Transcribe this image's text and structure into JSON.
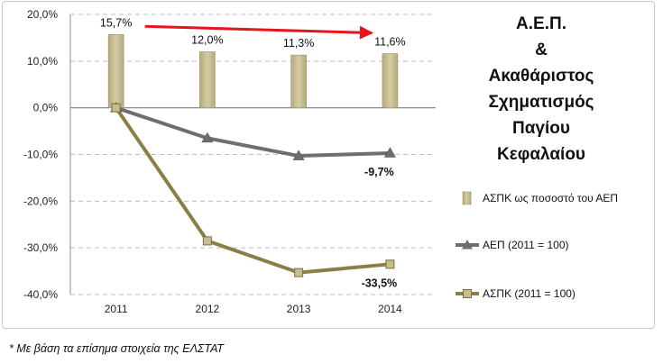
{
  "chart_data": {
    "type": "bar+line",
    "categories": [
      "2011",
      "2012",
      "2013",
      "2014"
    ],
    "ylim": [
      -40,
      20
    ],
    "yticks": [
      20,
      10,
      0,
      -10,
      -20,
      -30,
      -40
    ],
    "ytick_labels": [
      "20,0%",
      "10,0%",
      "0,0%",
      "-10,0%",
      "-20,0%",
      "-30,0%",
      "-40,0%"
    ],
    "grid": true,
    "legend_position": "right",
    "title_lines": [
      "Α.Ε.Π.",
      "&",
      "Ακαθάριστος",
      "Σχηματισμός",
      "Παγίου",
      "Κεφαλαίου"
    ],
    "series": [
      {
        "name": "ΑΣΠΚ ως ποσοστό του ΑΕΠ",
        "kind": "bar",
        "values": [
          15.7,
          12.0,
          11.3,
          11.6
        ],
        "labels": [
          "15,7%",
          "12,0%",
          "11,3%",
          "11,6%"
        ],
        "color": "#c6bd93"
      },
      {
        "name": "ΑΕΠ (2011 = 100)",
        "kind": "line",
        "values": [
          0.0,
          -6.5,
          -10.3,
          -9.7
        ],
        "end_label": "-9,7%",
        "color": "#6e6e6e"
      },
      {
        "name": "ΑΣΠΚ (2011 = 100)",
        "kind": "line",
        "values": [
          0.0,
          -28.5,
          -35.3,
          -33.5
        ],
        "end_label": "-33,5%",
        "color": "#8b7f45"
      }
    ],
    "trend_arrow": {
      "from_category": "2011",
      "to_category": "2014",
      "color": "#e8141b"
    }
  },
  "footnote": "* Με βάση τα επίσημα στοιχεία της ΕΛΣΤΑΤ"
}
